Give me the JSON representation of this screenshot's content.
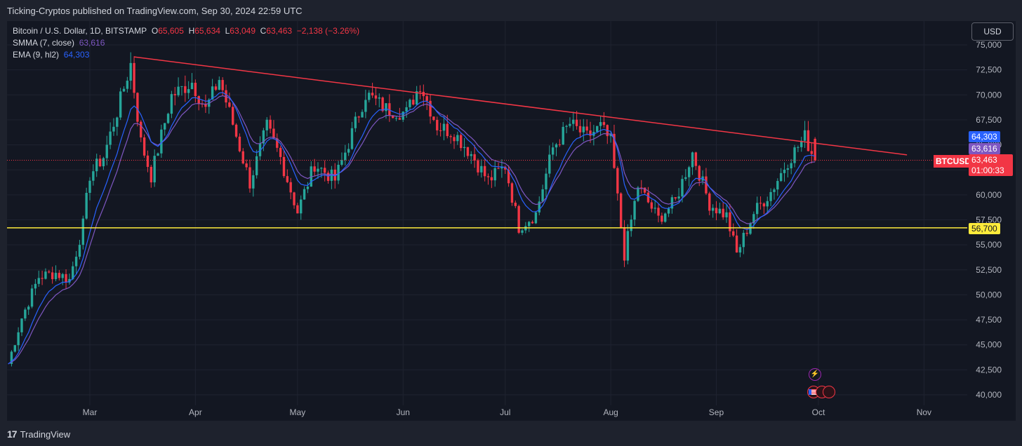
{
  "header": {
    "published": "Ticking-Cryptos published on TradingView.com, Sep 30, 2024 22:59 UTC"
  },
  "legend": {
    "symbol": "Bitcoin / U.S. Dollar, 1D, BITSTAMP",
    "o_label": "O",
    "o_val": "65,605",
    "h_label": "H",
    "h_val": "65,634",
    "l_label": "L",
    "l_val": "63,049",
    "c_label": "C",
    "c_val": "63,463",
    "change": "−2,138 (−3.26%)",
    "smma_label": "SMMA (7, close)",
    "smma_val": "63,616",
    "ema_label": "EMA (9, hl2)",
    "ema_val": "64,303"
  },
  "currency_button": "USD",
  "footer": {
    "brand": "TradingView",
    "logo": "17"
  },
  "tags": {
    "ema": "64,303",
    "smma": "63,616",
    "symbol": "BTCUSD",
    "last": "63,463",
    "countdown": "01:00:33",
    "support": "56,700"
  },
  "events": {
    "flash_icon": "⚡",
    "flag_icon": "us-flag-icon"
  },
  "colors": {
    "up": "#26a69a",
    "down": "#f23645",
    "smma": "#7e57c2",
    "ema": "#2962ff",
    "trendline": "#f23645",
    "support": "#ffeb3b",
    "bg": "#131722"
  },
  "chart_data": {
    "type": "candlestick",
    "y_ticks": [
      "75,000",
      "72,500",
      "70,000",
      "67,500",
      "65,000",
      "62,500",
      "60,000",
      "57,500",
      "55,000",
      "52,500",
      "50,000",
      "47,500",
      "45,000",
      "42,500",
      "40,000"
    ],
    "x_ticks": [
      "Mar",
      "Apr",
      "May",
      "Jun",
      "Jul",
      "Aug",
      "Sep",
      "Oct",
      "Nov"
    ],
    "ylim": [
      39000,
      76000
    ],
    "support_level": 56700,
    "trendline": [
      {
        "date": "2024-03-14",
        "y": 73800
      },
      {
        "date": "2024-10-27",
        "y": 64000
      }
    ],
    "close_series": [
      {
        "date": "2024-02-06",
        "y": 43100
      },
      {
        "date": "2024-02-10",
        "y": 47700
      },
      {
        "date": "2024-02-15",
        "y": 51800
      },
      {
        "date": "2024-02-20",
        "y": 52200
      },
      {
        "date": "2024-02-24",
        "y": 51500
      },
      {
        "date": "2024-02-28",
        "y": 57000
      },
      {
        "date": "2024-03-01",
        "y": 62000
      },
      {
        "date": "2024-03-05",
        "y": 63800
      },
      {
        "date": "2024-03-09",
        "y": 68300
      },
      {
        "date": "2024-03-13",
        "y": 73100
      },
      {
        "date": "2024-03-16",
        "y": 65300
      },
      {
        "date": "2024-03-19",
        "y": 61900
      },
      {
        "date": "2024-03-25",
        "y": 69900
      },
      {
        "date": "2024-03-31",
        "y": 71300
      },
      {
        "date": "2024-04-04",
        "y": 68500
      },
      {
        "date": "2024-04-08",
        "y": 71600
      },
      {
        "date": "2024-04-12",
        "y": 67100
      },
      {
        "date": "2024-04-17",
        "y": 61200
      },
      {
        "date": "2024-04-22",
        "y": 66800
      },
      {
        "date": "2024-04-26",
        "y": 63700
      },
      {
        "date": "2024-05-01",
        "y": 58300
      },
      {
        "date": "2024-05-06",
        "y": 63100
      },
      {
        "date": "2024-05-12",
        "y": 61500
      },
      {
        "date": "2024-05-16",
        "y": 65200
      },
      {
        "date": "2024-05-21",
        "y": 70100
      },
      {
        "date": "2024-05-27",
        "y": 68600
      },
      {
        "date": "2024-06-02",
        "y": 68200
      },
      {
        "date": "2024-06-06",
        "y": 71100
      },
      {
        "date": "2024-06-11",
        "y": 66900
      },
      {
        "date": "2024-06-16",
        "y": 66200
      },
      {
        "date": "2024-06-21",
        "y": 64100
      },
      {
        "date": "2024-06-26",
        "y": 61400
      },
      {
        "date": "2024-07-01",
        "y": 62900
      },
      {
        "date": "2024-07-05",
        "y": 56800
      },
      {
        "date": "2024-07-10",
        "y": 58100
      },
      {
        "date": "2024-07-15",
        "y": 64700
      },
      {
        "date": "2024-07-20",
        "y": 67100
      },
      {
        "date": "2024-07-25",
        "y": 65800
      },
      {
        "date": "2024-07-29",
        "y": 66800
      },
      {
        "date": "2024-08-01",
        "y": 65300
      },
      {
        "date": "2024-08-05",
        "y": 54000
      },
      {
        "date": "2024-08-09",
        "y": 60900
      },
      {
        "date": "2024-08-15",
        "y": 57600
      },
      {
        "date": "2024-08-20",
        "y": 59400
      },
      {
        "date": "2024-08-25",
        "y": 64200
      },
      {
        "date": "2024-08-30",
        "y": 59100
      },
      {
        "date": "2024-09-04",
        "y": 57900
      },
      {
        "date": "2024-09-07",
        "y": 54100
      },
      {
        "date": "2024-09-12",
        "y": 58200
      },
      {
        "date": "2024-09-17",
        "y": 60300
      },
      {
        "date": "2024-09-22",
        "y": 63400
      },
      {
        "date": "2024-09-27",
        "y": 65800
      },
      {
        "date": "2024-09-30",
        "y": 63463
      }
    ]
  }
}
